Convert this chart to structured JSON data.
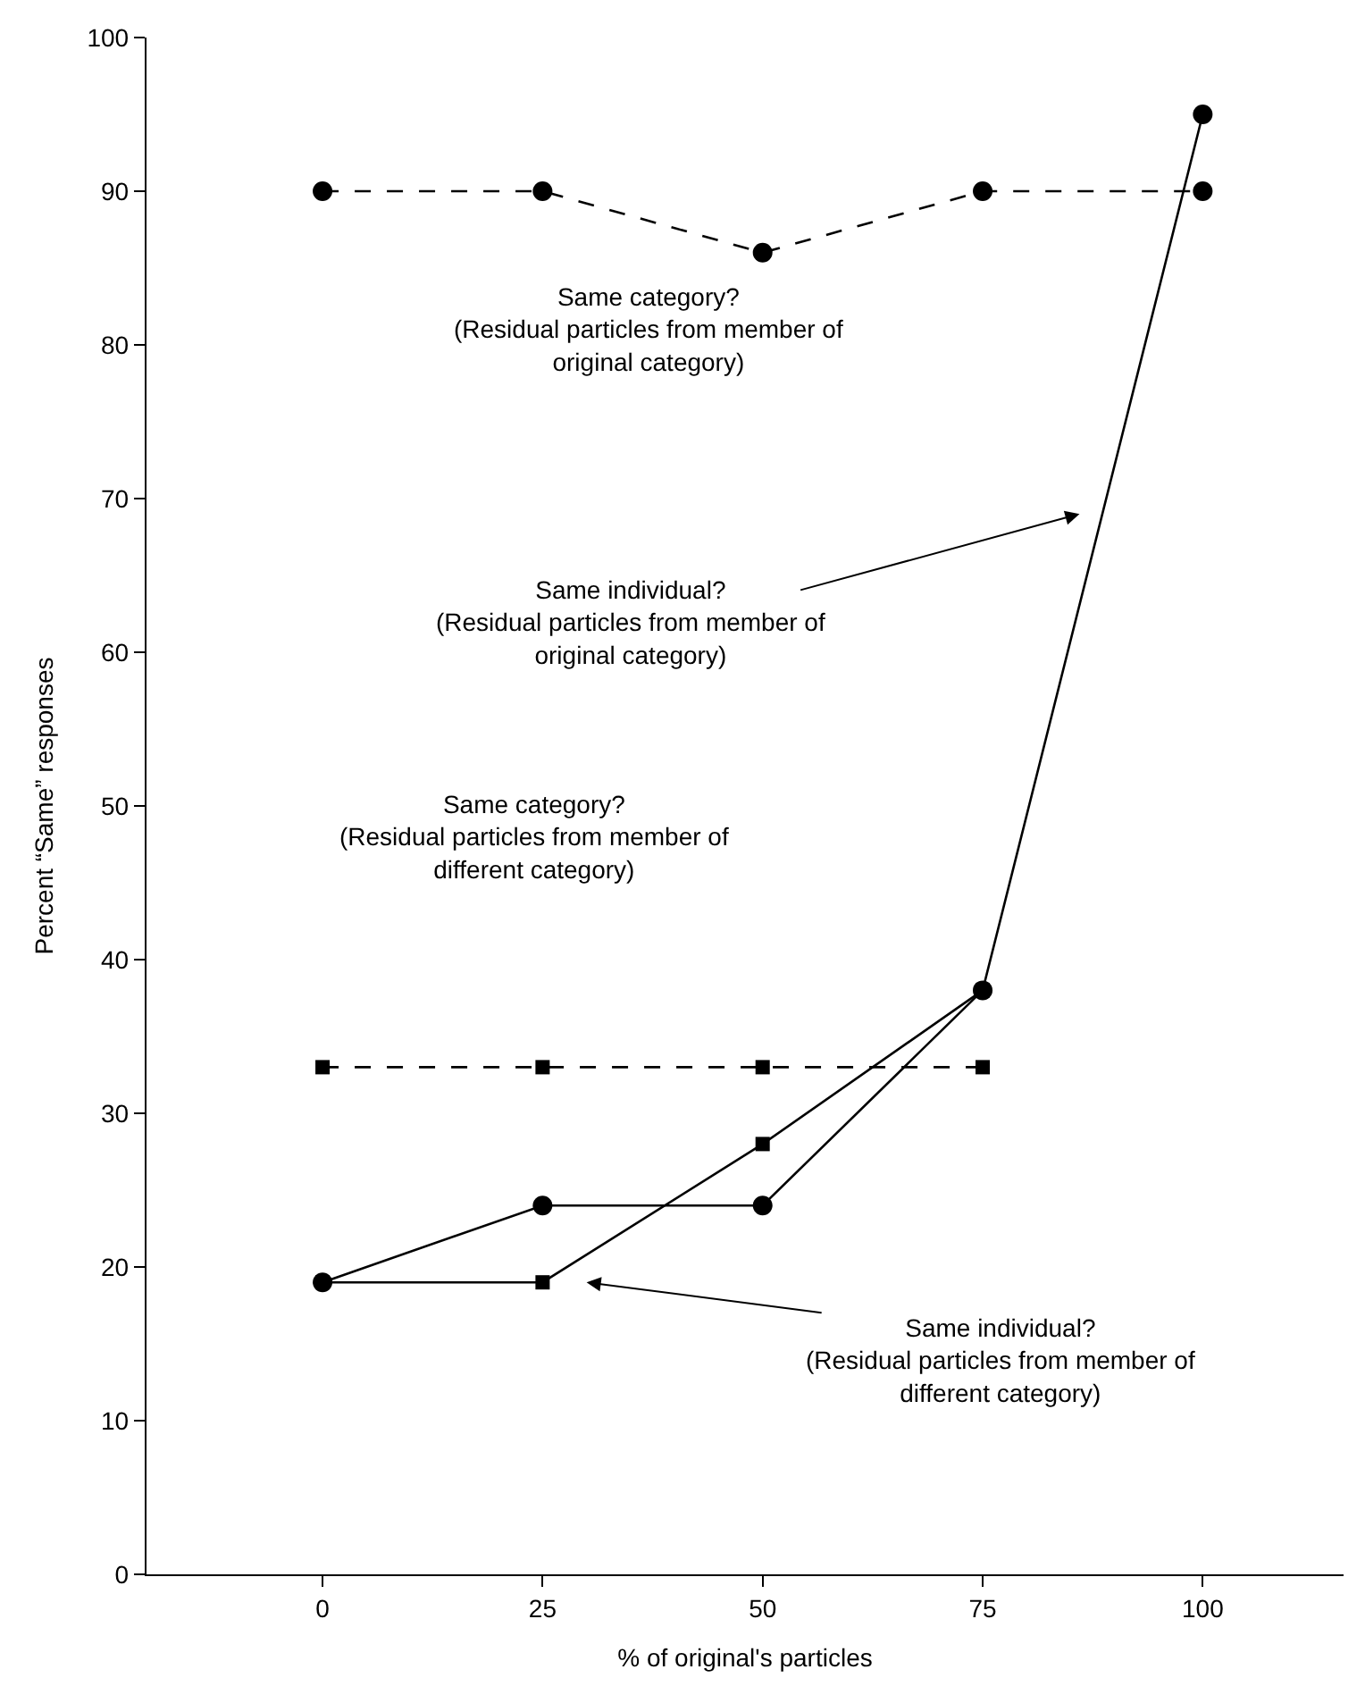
{
  "chart_data": {
    "type": "line",
    "xlabel": "% of original's particles",
    "ylabel": "Percent “Same” responses",
    "x": [
      0,
      25,
      50,
      75,
      100
    ],
    "series": [
      {
        "color": "#000000",
        "values": [
          90,
          90,
          86,
          90,
          90
        ],
        "marker": "circle",
        "line_style": "dashed"
      },
      {
        "color": "#000000",
        "values": [
          33,
          33,
          33,
          33,
          null
        ],
        "marker": "square",
        "line_style": "dashed"
      },
      {
        "color": "#000000",
        "values": [
          19,
          19,
          28,
          38,
          null
        ],
        "marker": "square",
        "line_style": "solid"
      },
      {
        "color": "#000000",
        "values": [
          19,
          24,
          24,
          38,
          95
        ],
        "marker": "circle",
        "line_style": "solid"
      }
    ],
    "annotations": [
      "Same category?\n(Residual particles from member of\noriginal category)",
      "Same individual?\n(Residual particles from member of\noriginal category)",
      "Same category?\n(Residual particles from member of\ndifferent category)",
      "Same individual?\n(Residual particles from member of\ndifferent category)"
    ],
    "xlim": [
      -20,
      116
    ],
    "xticks": [
      0,
      25,
      50,
      75,
      100
    ],
    "ylim": [
      0,
      100
    ],
    "yticks": [
      0,
      10,
      20,
      30,
      40,
      50,
      60,
      70,
      80,
      90,
      100
    ]
  }
}
